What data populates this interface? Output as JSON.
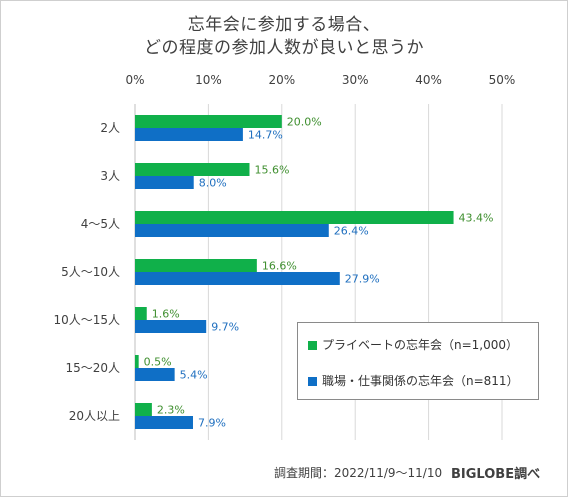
{
  "title_lines": [
    "忘年会に参加する場合、",
    "どの程度の参加人数が良いと思うか"
  ],
  "footer": {
    "period": "調査期間：2022/11/9〜11/10",
    "source": "BIGLOBE調べ"
  },
  "colors": {
    "private": "#10b04a",
    "work": "#0f6fc6",
    "private_label": "#3f8f2f",
    "work_label": "#1f6fbf",
    "axis_text": "#404040",
    "grid": "#d9d9d9"
  },
  "chart_data": {
    "type": "bar",
    "orientation": "horizontal",
    "title": "忘年会に参加する場合、どの程度の参加人数が良いと思うか",
    "categories": [
      "2人",
      "3人",
      "4〜5人",
      "5人〜10人",
      "10人〜15人",
      "15〜20人",
      "20人以上"
    ],
    "series": [
      {
        "name": "プライベートの忘年会（n=1,000）",
        "values": [
          20.0,
          15.6,
          43.4,
          16.6,
          1.6,
          0.5,
          2.3
        ],
        "labels": [
          "20.0%",
          "15.6%",
          "43.4%",
          "16.6%",
          "1.6%",
          "0.5%",
          "2.3%"
        ],
        "color": "#10b04a"
      },
      {
        "name": "職場・仕事関係の忘年会（n=811）",
        "values": [
          14.7,
          8.0,
          26.4,
          27.9,
          9.7,
          5.4,
          7.9
        ],
        "labels": [
          "14.7%",
          "8.0%",
          "26.4%",
          "27.9%",
          "9.7%",
          "5.4%",
          "7.9%"
        ],
        "color": "#0f6fc6"
      }
    ],
    "xlim": [
      0,
      50
    ],
    "xticks": [
      0,
      10,
      20,
      30,
      40,
      50
    ],
    "xtick_labels": [
      "0%",
      "10%",
      "20%",
      "30%",
      "40%",
      "50%"
    ],
    "xlabel": "",
    "ylabel": "",
    "grid": true,
    "legend": "bottom-right"
  }
}
